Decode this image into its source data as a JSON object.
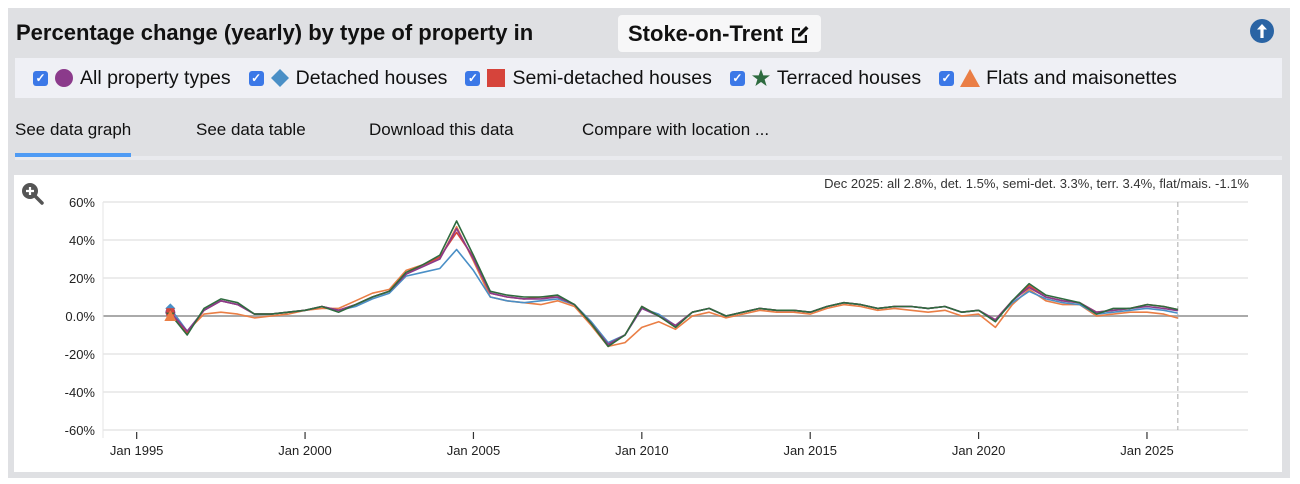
{
  "header": {
    "title": "Percentage change (yearly) by type of property in",
    "location": "Stoke-on-Trent",
    "edit_icon": "edit-icon",
    "scroll_top_icon": "arrow-up-circle-icon"
  },
  "legend": [
    {
      "label": "All property types",
      "color": "#8b3a8b",
      "marker": "circle",
      "checked": true
    },
    {
      "label": "Detached houses",
      "color": "#4a8fc6",
      "marker": "diamond",
      "checked": true
    },
    {
      "label": "Semi-detached houses",
      "color": "#d6443b",
      "marker": "square",
      "checked": true
    },
    {
      "label": "Terraced houses",
      "color": "#2e6b3f",
      "marker": "star",
      "checked": true
    },
    {
      "label": "Flats and maisonettes",
      "color": "#ea7e45",
      "marker": "triangle",
      "checked": true
    }
  ],
  "tabs": [
    {
      "label": "See data graph",
      "active": true
    },
    {
      "label": "See data table",
      "active": false
    },
    {
      "label": "Download this data",
      "active": false
    },
    {
      "label": "Compare with location ...",
      "active": false
    }
  ],
  "chart_data": {
    "type": "line",
    "annotation": "Dec 2025: all 2.8%, det. 1.5%, semi-det. 3.3%, terr. 3.4%, flat/mais. -1.1%",
    "ylim": [
      -60,
      60
    ],
    "yticks": [
      "60%",
      "40%",
      "20%",
      "0.0%",
      "-20%",
      "-40%",
      "-60%"
    ],
    "ytick_values": [
      60,
      40,
      20,
      0,
      -20,
      -40,
      -60
    ],
    "xticks": [
      "Jan 1995",
      "Jan 2000",
      "Jan 2005",
      "Jan 2010",
      "Jan 2015",
      "Jan 2020",
      "Jan 2025"
    ],
    "xtick_values": [
      "1995-01",
      "2000-01",
      "2005-01",
      "2010-01",
      "2015-01",
      "2020-01",
      "2025-01"
    ],
    "xlim": [
      "1994-01",
      "2028-01"
    ],
    "grid": true,
    "marker_line": "2025-12",
    "zoom_icon": "zoom-in-icon",
    "x": [
      "1996-01",
      "1996-07",
      "1997-01",
      "1997-07",
      "1998-01",
      "1998-07",
      "1999-01",
      "1999-07",
      "2000-01",
      "2000-07",
      "2001-01",
      "2001-07",
      "2002-01",
      "2002-07",
      "2003-01",
      "2003-07",
      "2004-01",
      "2004-07",
      "2005-01",
      "2005-07",
      "2006-01",
      "2006-07",
      "2007-01",
      "2007-07",
      "2008-01",
      "2008-07",
      "2009-01",
      "2009-07",
      "2010-01",
      "2010-07",
      "2011-01",
      "2011-07",
      "2012-01",
      "2012-07",
      "2013-01",
      "2013-07",
      "2014-01",
      "2014-07",
      "2015-01",
      "2015-07",
      "2016-01",
      "2016-07",
      "2017-01",
      "2017-07",
      "2018-01",
      "2018-07",
      "2019-01",
      "2019-07",
      "2020-01",
      "2020-07",
      "2021-01",
      "2021-07",
      "2022-01",
      "2022-07",
      "2023-01",
      "2023-07",
      "2024-01",
      "2024-07",
      "2025-01",
      "2025-07",
      "2025-12"
    ],
    "series": [
      {
        "name": "All property types",
        "color": "#8b3a8b",
        "values": [
          2,
          -8,
          3,
          8,
          6,
          1,
          1,
          2,
          3,
          5,
          3,
          6,
          10,
          13,
          22,
          26,
          30,
          46,
          30,
          12,
          10,
          9,
          9,
          10,
          6,
          -4,
          -15,
          -10,
          4,
          0,
          -5,
          2,
          4,
          0,
          2,
          4,
          3,
          3,
          2,
          5,
          7,
          6,
          4,
          5,
          5,
          4,
          5,
          2,
          3,
          -2,
          8,
          15,
          10,
          8,
          7,
          2,
          3,
          4,
          5,
          4,
          2.8
        ]
      },
      {
        "name": "Detached houses",
        "color": "#4a8fc6",
        "values": [
          4,
          -8,
          3,
          8,
          6,
          1,
          1,
          2,
          3,
          5,
          3,
          5,
          9,
          12,
          21,
          23,
          25,
          35,
          24,
          10,
          8,
          7,
          8,
          9,
          6,
          -3,
          -14,
          -10,
          4,
          1,
          -5,
          2,
          4,
          0,
          2,
          4,
          3,
          3,
          2,
          5,
          7,
          6,
          4,
          5,
          5,
          4,
          5,
          2,
          3,
          -2,
          7,
          13,
          9,
          7,
          6,
          1,
          2,
          3,
          4,
          3,
          1.5
        ]
      },
      {
        "name": "Semi-detached houses",
        "color": "#d6443b",
        "values": [
          2,
          -9,
          3,
          8,
          6,
          1,
          1,
          2,
          3,
          5,
          3,
          6,
          10,
          13,
          22,
          27,
          31,
          44,
          31,
          12,
          10,
          9,
          10,
          10,
          6,
          -4,
          -15,
          -10,
          5,
          0,
          -5,
          2,
          4,
          0,
          2,
          4,
          3,
          3,
          2,
          5,
          7,
          6,
          4,
          5,
          5,
          4,
          5,
          2,
          3,
          -2,
          8,
          16,
          10,
          8,
          7,
          2,
          3,
          4,
          6,
          5,
          3.3
        ]
      },
      {
        "name": "Terraced houses",
        "color": "#2e6b3f",
        "values": [
          1,
          -10,
          4,
          9,
          7,
          1,
          1,
          2,
          3,
          5,
          2,
          6,
          10,
          13,
          23,
          27,
          32,
          50,
          32,
          13,
          11,
          10,
          10,
          11,
          6,
          -4,
          -16,
          -10,
          5,
          0,
          -6,
          2,
          4,
          0,
          2,
          4,
          3,
          3,
          2,
          5,
          7,
          6,
          4,
          5,
          5,
          4,
          5,
          2,
          3,
          -3,
          8,
          17,
          11,
          9,
          7,
          1,
          4,
          4,
          6,
          5,
          3.4
        ]
      },
      {
        "name": "Flats and maisonettes",
        "color": "#ea7e45",
        "values": [
          0,
          -8,
          1,
          2,
          1,
          -1,
          0,
          1,
          3,
          4,
          4,
          8,
          12,
          14,
          24,
          27,
          30,
          47,
          29,
          10,
          8,
          7,
          6,
          8,
          5,
          -5,
          -16,
          -14,
          -6,
          -3,
          -7,
          0,
          2,
          -1,
          1,
          3,
          2,
          2,
          1,
          4,
          6,
          5,
          3,
          4,
          3,
          2,
          3,
          0,
          1,
          -6,
          6,
          14,
          8,
          6,
          6,
          0,
          1,
          2,
          2,
          1,
          -1.1
        ]
      }
    ]
  }
}
